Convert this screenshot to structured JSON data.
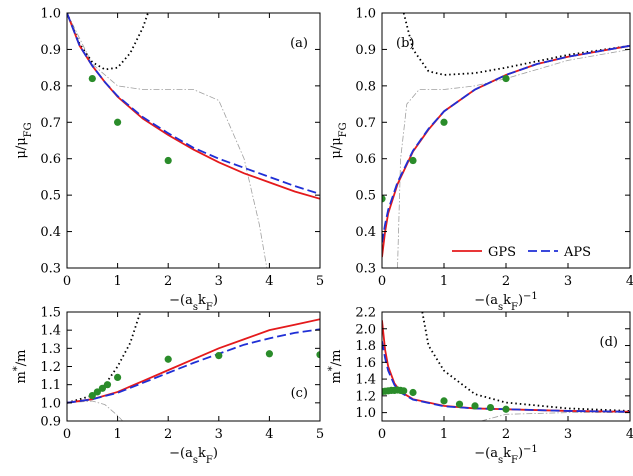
{
  "chart_data": [
    {
      "type": "line",
      "annotation": "(a)",
      "annotation_corner": "upper right",
      "x_label": [
        [
          "−(a",
          ""
        ],
        [
          "s",
          "sub"
        ],
        [
          "k",
          ""
        ],
        [
          "F",
          "sub"
        ],
        [
          ")",
          ""
        ]
      ],
      "y_label": [
        [
          "μ/μ",
          ""
        ],
        [
          "FG",
          "sub"
        ]
      ],
      "xlim": [
        0,
        5
      ],
      "ylim": [
        0.3,
        1
      ],
      "xticks": [
        0,
        1,
        2,
        3,
        4,
        5
      ],
      "yticks": [
        0.3,
        0.4,
        0.5,
        0.6,
        0.7,
        0.8,
        0.9,
        {
          "value": 1,
          "label": "1.0"
        }
      ],
      "series": [
        {
          "style": "dashdot",
          "color": "#a0a0a0",
          "x": [
            0,
            0.5,
            1,
            1.5,
            2,
            2.5,
            3,
            3.5,
            3.8,
            3.95
          ],
          "values": [
            1,
            0.86,
            0.8,
            0.79,
            0.79,
            0.79,
            0.76,
            0.6,
            0.42,
            0.3
          ]
        },
        {
          "style": "dotted",
          "color": "#000000",
          "x": [
            0,
            0.25,
            0.5,
            0.75,
            1,
            1.25,
            1.5,
            1.6
          ],
          "values": [
            1,
            0.915,
            0.865,
            0.845,
            0.85,
            0.89,
            0.96,
            1
          ]
        },
        {
          "style": "solid",
          "color": "#e41a1c",
          "x": [
            0,
            0.25,
            0.5,
            0.75,
            1,
            1.5,
            2,
            2.5,
            3,
            3.5,
            4,
            4.5,
            5
          ],
          "values": [
            1,
            0.91,
            0.855,
            0.81,
            0.77,
            0.71,
            0.665,
            0.625,
            0.59,
            0.56,
            0.535,
            0.51,
            0.49
          ]
        },
        {
          "style": "dashed",
          "color": "#1f2fd6",
          "x": [
            0,
            0.25,
            0.5,
            0.75,
            1,
            1.5,
            2,
            2.5,
            3,
            3.5,
            4,
            4.5,
            5
          ],
          "values": [
            1,
            0.91,
            0.855,
            0.81,
            0.772,
            0.714,
            0.67,
            0.63,
            0.6,
            0.575,
            0.55,
            0.525,
            0.503
          ]
        },
        {
          "style": "markers",
          "color": "#2a8c2a",
          "x": [
            0.5,
            1,
            2
          ],
          "values": [
            0.82,
            0.7,
            0.595
          ]
        }
      ]
    },
    {
      "type": "line",
      "annotation": "(b)",
      "annotation_corner": "upper left",
      "x_label": [
        [
          "−(a",
          ""
        ],
        [
          "s",
          "sub"
        ],
        [
          "k",
          ""
        ],
        [
          "F",
          "sub"
        ],
        [
          ")",
          ""
        ],
        [
          "−1",
          "sup"
        ]
      ],
      "y_label": [
        [
          "μ/μ",
          ""
        ],
        [
          "FG",
          "sub"
        ]
      ],
      "xlim": [
        0,
        4
      ],
      "ylim": [
        0.3,
        1
      ],
      "xticks": [
        0,
        1,
        2,
        3,
        4
      ],
      "yticks": [
        0.3,
        0.4,
        0.5,
        0.6,
        0.7,
        0.8,
        0.9,
        {
          "value": 1,
          "label": "1.0"
        }
      ],
      "legend": "lower right",
      "series": [
        {
          "style": "dashdot",
          "color": "#a0a0a0",
          "x": [
            0.25,
            0.3,
            0.4,
            0.6,
            1,
            1.5,
            2,
            3,
            4
          ],
          "values": [
            0.3,
            0.6,
            0.75,
            0.79,
            0.79,
            0.8,
            0.82,
            0.87,
            0.9
          ]
        },
        {
          "style": "dotted",
          "color": "#000000",
          "x": [
            0.35,
            0.5,
            0.75,
            1,
            1.5,
            2,
            3,
            4
          ],
          "values": [
            1,
            0.9,
            0.84,
            0.83,
            0.835,
            0.85,
            0.885,
            0.91
          ]
        },
        {
          "name": "GPS",
          "style": "solid",
          "color": "#e41a1c",
          "x": [
            0,
            0.05,
            0.1,
            0.25,
            0.5,
            0.75,
            1,
            1.5,
            2,
            2.5,
            3,
            3.5,
            4
          ],
          "values": [
            0.33,
            0.4,
            0.45,
            0.53,
            0.62,
            0.68,
            0.73,
            0.79,
            0.83,
            0.86,
            0.88,
            0.895,
            0.91
          ]
        },
        {
          "name": "APS",
          "style": "dashed",
          "color": "#1f2fd6",
          "x": [
            0,
            0.05,
            0.1,
            0.25,
            0.5,
            0.75,
            1,
            1.5,
            2,
            2.5,
            3,
            3.5,
            4
          ],
          "values": [
            0.37,
            0.42,
            0.46,
            0.535,
            0.622,
            0.682,
            0.73,
            0.79,
            0.83,
            0.86,
            0.88,
            0.895,
            0.91
          ]
        },
        {
          "style": "markers",
          "color": "#2a8c2a",
          "x": [
            0,
            0.5,
            1,
            2
          ],
          "values": [
            0.49,
            0.595,
            0.7,
            0.82
          ]
        }
      ]
    },
    {
      "type": "line",
      "annotation": "(c)",
      "annotation_corner": "lower right",
      "x_label": [
        [
          "−(a",
          ""
        ],
        [
          "s",
          "sub"
        ],
        [
          "k",
          ""
        ],
        [
          "F",
          "sub"
        ],
        [
          ")",
          ""
        ]
      ],
      "y_label": [
        [
          "m",
          ""
        ],
        [
          "*",
          "sup"
        ],
        [
          "/m",
          ""
        ]
      ],
      "xlim": [
        0,
        5
      ],
      "ylim": [
        0.9,
        1.5
      ],
      "xticks": [
        0,
        1,
        2,
        3,
        4,
        5
      ],
      "yticks": [
        0.9,
        {
          "value": 1,
          "label": "1.0"
        },
        1.1,
        1.2,
        1.3,
        1.4,
        1.5
      ],
      "series": [
        {
          "style": "dashdot",
          "color": "#a0a0a0",
          "x": [
            0,
            0.5,
            0.75,
            1,
            1.1
          ],
          "values": [
            1,
            1.01,
            0.99,
            0.93,
            0.9
          ]
        },
        {
          "style": "dotted",
          "color": "#000000",
          "x": [
            0,
            0.5,
            0.75,
            1,
            1.25,
            1.45
          ],
          "values": [
            1,
            1.04,
            1.1,
            1.2,
            1.33,
            1.5
          ]
        },
        {
          "style": "solid",
          "color": "#e41a1c",
          "x": [
            0,
            0.5,
            1,
            1.5,
            2,
            2.5,
            3,
            3.5,
            4,
            4.5,
            5
          ],
          "values": [
            1,
            1.02,
            1.06,
            1.12,
            1.18,
            1.24,
            1.3,
            1.35,
            1.4,
            1.43,
            1.46
          ]
        },
        {
          "style": "dashed",
          "color": "#1f2fd6",
          "x": [
            0,
            0.5,
            1,
            1.5,
            2,
            2.5,
            3,
            3.5,
            4,
            4.5,
            5
          ],
          "values": [
            1,
            1.02,
            1.055,
            1.11,
            1.165,
            1.22,
            1.27,
            1.32,
            1.355,
            1.385,
            1.405
          ]
        },
        {
          "style": "markers",
          "color": "#2a8c2a",
          "x": [
            0.5,
            0.6,
            0.7,
            0.8,
            1,
            2,
            3,
            4,
            5
          ],
          "values": [
            1.04,
            1.06,
            1.08,
            1.1,
            1.14,
            1.24,
            1.26,
            1.27,
            1.265
          ]
        }
      ]
    },
    {
      "type": "line",
      "annotation": "(d)",
      "annotation_corner": "upper right",
      "x_label": [
        [
          "−(a",
          ""
        ],
        [
          "s",
          "sub"
        ],
        [
          "k",
          ""
        ],
        [
          "F",
          "sub"
        ],
        [
          ")",
          ""
        ],
        [
          "−1",
          "sup"
        ]
      ],
      "y_label": [
        [
          "m",
          ""
        ],
        [
          "*",
          "sup"
        ],
        [
          "/m",
          ""
        ]
      ],
      "xlim": [
        0,
        4
      ],
      "ylim": [
        0.9,
        2.2
      ],
      "xticks": [
        0,
        1,
        2,
        3,
        4
      ],
      "yticks": [
        {
          "value": 1,
          "label": "1.0"
        },
        1.2,
        1.4,
        1.6,
        1.8,
        {
          "value": 2,
          "label": "2.0"
        },
        2.2
      ],
      "series": [
        {
          "style": "dashdot",
          "color": "#a0a0a0",
          "x": [
            1.6,
            2,
            3,
            4
          ],
          "values": [
            0.9,
            0.98,
            1,
            1
          ]
        },
        {
          "style": "dotted",
          "color": "#000000",
          "x": [
            0.65,
            0.75,
            1,
            1.5,
            2,
            3,
            4
          ],
          "values": [
            2.2,
            1.8,
            1.5,
            1.22,
            1.12,
            1.05,
            1.02
          ]
        },
        {
          "style": "solid",
          "color": "#e41a1c",
          "x": [
            0,
            0.05,
            0.1,
            0.2,
            0.3,
            0.5,
            1,
            1.5,
            2,
            3,
            4
          ],
          "values": [
            2.1,
            1.75,
            1.55,
            1.35,
            1.25,
            1.16,
            1.08,
            1.05,
            1.04,
            1.02,
            1.01
          ]
        },
        {
          "style": "dashed",
          "color": "#1f2fd6",
          "x": [
            0,
            0.05,
            0.1,
            0.2,
            0.3,
            0.5,
            1,
            1.5,
            2,
            3,
            4
          ],
          "values": [
            1.85,
            1.65,
            1.5,
            1.33,
            1.24,
            1.155,
            1.075,
            1.05,
            1.04,
            1.02,
            1.01
          ]
        },
        {
          "style": "markers",
          "color": "#2a8c2a",
          "x": [
            0,
            0.05,
            0.1,
            0.15,
            0.2,
            0.25,
            0.3,
            0.35,
            0.5,
            1,
            1.25,
            1.5,
            1.75,
            2
          ],
          "values": [
            1.25,
            1.255,
            1.26,
            1.265,
            1.265,
            1.27,
            1.265,
            1.26,
            1.24,
            1.14,
            1.1,
            1.08,
            1.06,
            1.04
          ]
        }
      ]
    }
  ]
}
